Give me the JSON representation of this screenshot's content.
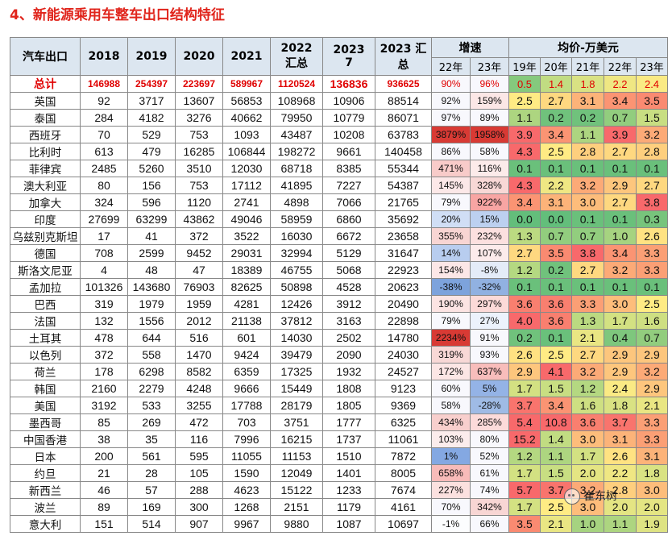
{
  "title": "4、新能源乘用车整车出口结构特征",
  "header": {
    "row1": [
      "汽车出口",
      "2018",
      "2019",
      "2020",
      "2021",
      "2022\n汇总",
      "2023\n7",
      "2023 汇\n总"
    ],
    "growth_label": "增速",
    "price_label": "均价-万美元",
    "growth_years": [
      "22年",
      "23年"
    ],
    "price_years": [
      "19年",
      "20年",
      "21年",
      "22年",
      "23年"
    ]
  },
  "rows": [
    {
      "name": "总计",
      "v": [
        "146988",
        "254397",
        "223697",
        "589967",
        "1120524",
        "136836",
        "936625"
      ],
      "g": [
        "90%",
        "96%"
      ],
      "p": [
        "0.5",
        "1.4",
        "1.8",
        "2.2",
        "2.4"
      ]
    },
    {
      "name": "英国",
      "v": [
        "92",
        "3717",
        "13607",
        "56853",
        "108968",
        "10906",
        "88514"
      ],
      "g": [
        "92%",
        "159%"
      ],
      "p": [
        "2.5",
        "2.7",
        "3.1",
        "3.4",
        "3.5"
      ]
    },
    {
      "name": "泰国",
      "v": [
        "284",
        "4182",
        "3276",
        "40662",
        "79950",
        "10779",
        "86071"
      ],
      "g": [
        "97%",
        "89%"
      ],
      "p": [
        "1.1",
        "0.2",
        "0.2",
        "0.7",
        "1.5"
      ]
    },
    {
      "name": "西班牙",
      "v": [
        "70",
        "529",
        "753",
        "1093",
        "43487",
        "10208",
        "63783"
      ],
      "g": [
        "3879%",
        "1958%"
      ],
      "p": [
        "3.9",
        "3.4",
        "1.1",
        "3.9",
        "3.2"
      ]
    },
    {
      "name": "比利时",
      "v": [
        "613",
        "479",
        "16285",
        "106844",
        "198272",
        "9661",
        "140458"
      ],
      "g": [
        "86%",
        "58%"
      ],
      "p": [
        "4.3",
        "2.5",
        "2.8",
        "2.7",
        "2.8"
      ]
    },
    {
      "name": "菲律宾",
      "v": [
        "2485",
        "5260",
        "3510",
        "12030",
        "68718",
        "8385",
        "55344"
      ],
      "g": [
        "471%",
        "116%"
      ],
      "p": [
        "0.1",
        "0.1",
        "0.1",
        "0.1",
        "0.1"
      ]
    },
    {
      "name": "澳大利亚",
      "v": [
        "80",
        "156",
        "753",
        "17112",
        "41895",
        "7227",
        "54387"
      ],
      "g": [
        "145%",
        "328%"
      ],
      "p": [
        "4.3",
        "2.2",
        "3.2",
        "2.9",
        "2.7"
      ]
    },
    {
      "name": "加拿大",
      "v": [
        "324",
        "596",
        "1120",
        "2741",
        "4898",
        "7066",
        "21765"
      ],
      "g": [
        "79%",
        "922%"
      ],
      "p": [
        "3.4",
        "3.1",
        "3.0",
        "2.7",
        "3.8"
      ]
    },
    {
      "name": "印度",
      "v": [
        "27699",
        "63299",
        "43862",
        "49046",
        "58959",
        "6860",
        "35692"
      ],
      "g": [
        "20%",
        "15%"
      ],
      "p": [
        "0.0",
        "0.0",
        "0.1",
        "0.1",
        "0.3"
      ]
    },
    {
      "name": "乌兹别克斯坦",
      "v": [
        "17",
        "41",
        "372",
        "3522",
        "16030",
        "6672",
        "23658"
      ],
      "g": [
        "355%",
        "232%"
      ],
      "p": [
        "1.3",
        "0.7",
        "0.7",
        "1.0",
        "2.6"
      ]
    },
    {
      "name": "德国",
      "v": [
        "708",
        "2599",
        "9452",
        "29031",
        "32994",
        "5129",
        "31647"
      ],
      "g": [
        "14%",
        "107%"
      ],
      "p": [
        "2.7",
        "3.5",
        "3.8",
        "3.4",
        "3.3"
      ]
    },
    {
      "name": "斯洛文尼亚",
      "v": [
        "4",
        "48",
        "47",
        "18389",
        "46755",
        "5068",
        "22923"
      ],
      "g": [
        "154%",
        "-8%"
      ],
      "p": [
        "1.2",
        "0.2",
        "2.7",
        "3.2",
        "3.3"
      ]
    },
    {
      "name": "孟加拉",
      "v": [
        "101326",
        "143680",
        "76903",
        "82625",
        "50898",
        "4528",
        "20623"
      ],
      "g": [
        "-38%",
        "-32%"
      ],
      "p": [
        "0.1",
        "0.1",
        "0.1",
        "0.1",
        "0.1"
      ]
    },
    {
      "name": "巴西",
      "v": [
        "319",
        "1979",
        "1959",
        "4281",
        "12426",
        "3912",
        "20490"
      ],
      "g": [
        "190%",
        "297%"
      ],
      "p": [
        "3.6",
        "3.6",
        "3.3",
        "3.0",
        "2.5"
      ]
    },
    {
      "name": "法国",
      "v": [
        "132",
        "1556",
        "2012",
        "21138",
        "37812",
        "3163",
        "22898"
      ],
      "g": [
        "79%",
        "27%"
      ],
      "p": [
        "4.0",
        "3.6",
        "1.3",
        "1.7",
        "1.6"
      ]
    },
    {
      "name": "土耳其",
      "v": [
        "478",
        "644",
        "516",
        "601",
        "14030",
        "2502",
        "14780"
      ],
      "g": [
        "2234%",
        "91%"
      ],
      "p": [
        "0.2",
        "0.1",
        "2.1",
        "0.4",
        "0.7"
      ]
    },
    {
      "name": "以色列",
      "v": [
        "372",
        "558",
        "1470",
        "9424",
        "39479",
        "2090",
        "24030"
      ],
      "g": [
        "319%",
        "93%"
      ],
      "p": [
        "2.6",
        "2.5",
        "2.7",
        "2.9",
        "2.9"
      ]
    },
    {
      "name": "荷兰",
      "v": [
        "178",
        "6298",
        "8582",
        "6359",
        "17325",
        "1932",
        "24527"
      ],
      "g": [
        "172%",
        "637%"
      ],
      "p": [
        "2.9",
        "4.1",
        "3.2",
        "2.9",
        "3.2"
      ]
    },
    {
      "name": "韩国",
      "v": [
        "2160",
        "2279",
        "4248",
        "9666",
        "15449",
        "1808",
        "9123"
      ],
      "g": [
        "60%",
        "5%"
      ],
      "p": [
        "1.7",
        "1.5",
        "1.2",
        "2.4",
        "2.9"
      ]
    },
    {
      "name": "美国",
      "v": [
        "3192",
        "533",
        "3255",
        "17788",
        "28179",
        "1805",
        "9369"
      ],
      "g": [
        "58%",
        "-28%"
      ],
      "p": [
        "3.7",
        "3.4",
        "1.6",
        "1.8",
        "2.1"
      ]
    },
    {
      "name": "墨西哥",
      "v": [
        "85",
        "269",
        "472",
        "703",
        "3751",
        "1777",
        "6325"
      ],
      "g": [
        "434%",
        "285%"
      ],
      "p": [
        "5.4",
        "10.8",
        "3.6",
        "3.7",
        "3.3"
      ]
    },
    {
      "name": "中国香港",
      "v": [
        "38",
        "35",
        "116",
        "7996",
        "16215",
        "1737",
        "11061"
      ],
      "g": [
        "103%",
        "80%"
      ],
      "p": [
        "15.2",
        "1.4",
        "3.0",
        "3.1",
        "3.3"
      ]
    },
    {
      "name": "日本",
      "v": [
        "200",
        "561",
        "595",
        "11055",
        "11153",
        "1510",
        "7872"
      ],
      "g": [
        "1%",
        "52%"
      ],
      "p": [
        "1.2",
        "1.1",
        "1.7",
        "2.6",
        "3.1"
      ]
    },
    {
      "name": "约旦",
      "v": [
        "21",
        "28",
        "105",
        "1590",
        "12049",
        "1401",
        "8005"
      ],
      "g": [
        "658%",
        "61%"
      ],
      "p": [
        "1.7",
        "1.5",
        "2.0",
        "2.2",
        "1.8"
      ]
    },
    {
      "name": "新西兰",
      "v": [
        "46",
        "57",
        "288",
        "4623",
        "15122",
        "1233",
        "7674"
      ],
      "g": [
        "227%",
        "74%"
      ],
      "p": [
        "5.7",
        "3.7",
        "3.2",
        "2.8",
        "3.0"
      ]
    },
    {
      "name": "波兰",
      "v": [
        "89",
        "169",
        "300",
        "1268",
        "2151",
        "1179",
        "4161"
      ],
      "g": [
        "70%",
        "342%"
      ],
      "p": [
        "1.7",
        "2.5",
        "3.0",
        "2.0",
        "2.0"
      ]
    },
    {
      "name": "意大利",
      "v": [
        "151",
        "514",
        "907",
        "9967",
        "9880",
        "1087",
        "10697"
      ],
      "g": [
        "-1%",
        "66%"
      ],
      "p": [
        "3.5",
        "2.1",
        "1.0",
        "1.1",
        "1.9"
      ]
    }
  ],
  "watermark": "崔东树",
  "colors": {
    "title": "#e0241b",
    "header_bg": "#dce6f0",
    "total_text": "#e00000"
  }
}
